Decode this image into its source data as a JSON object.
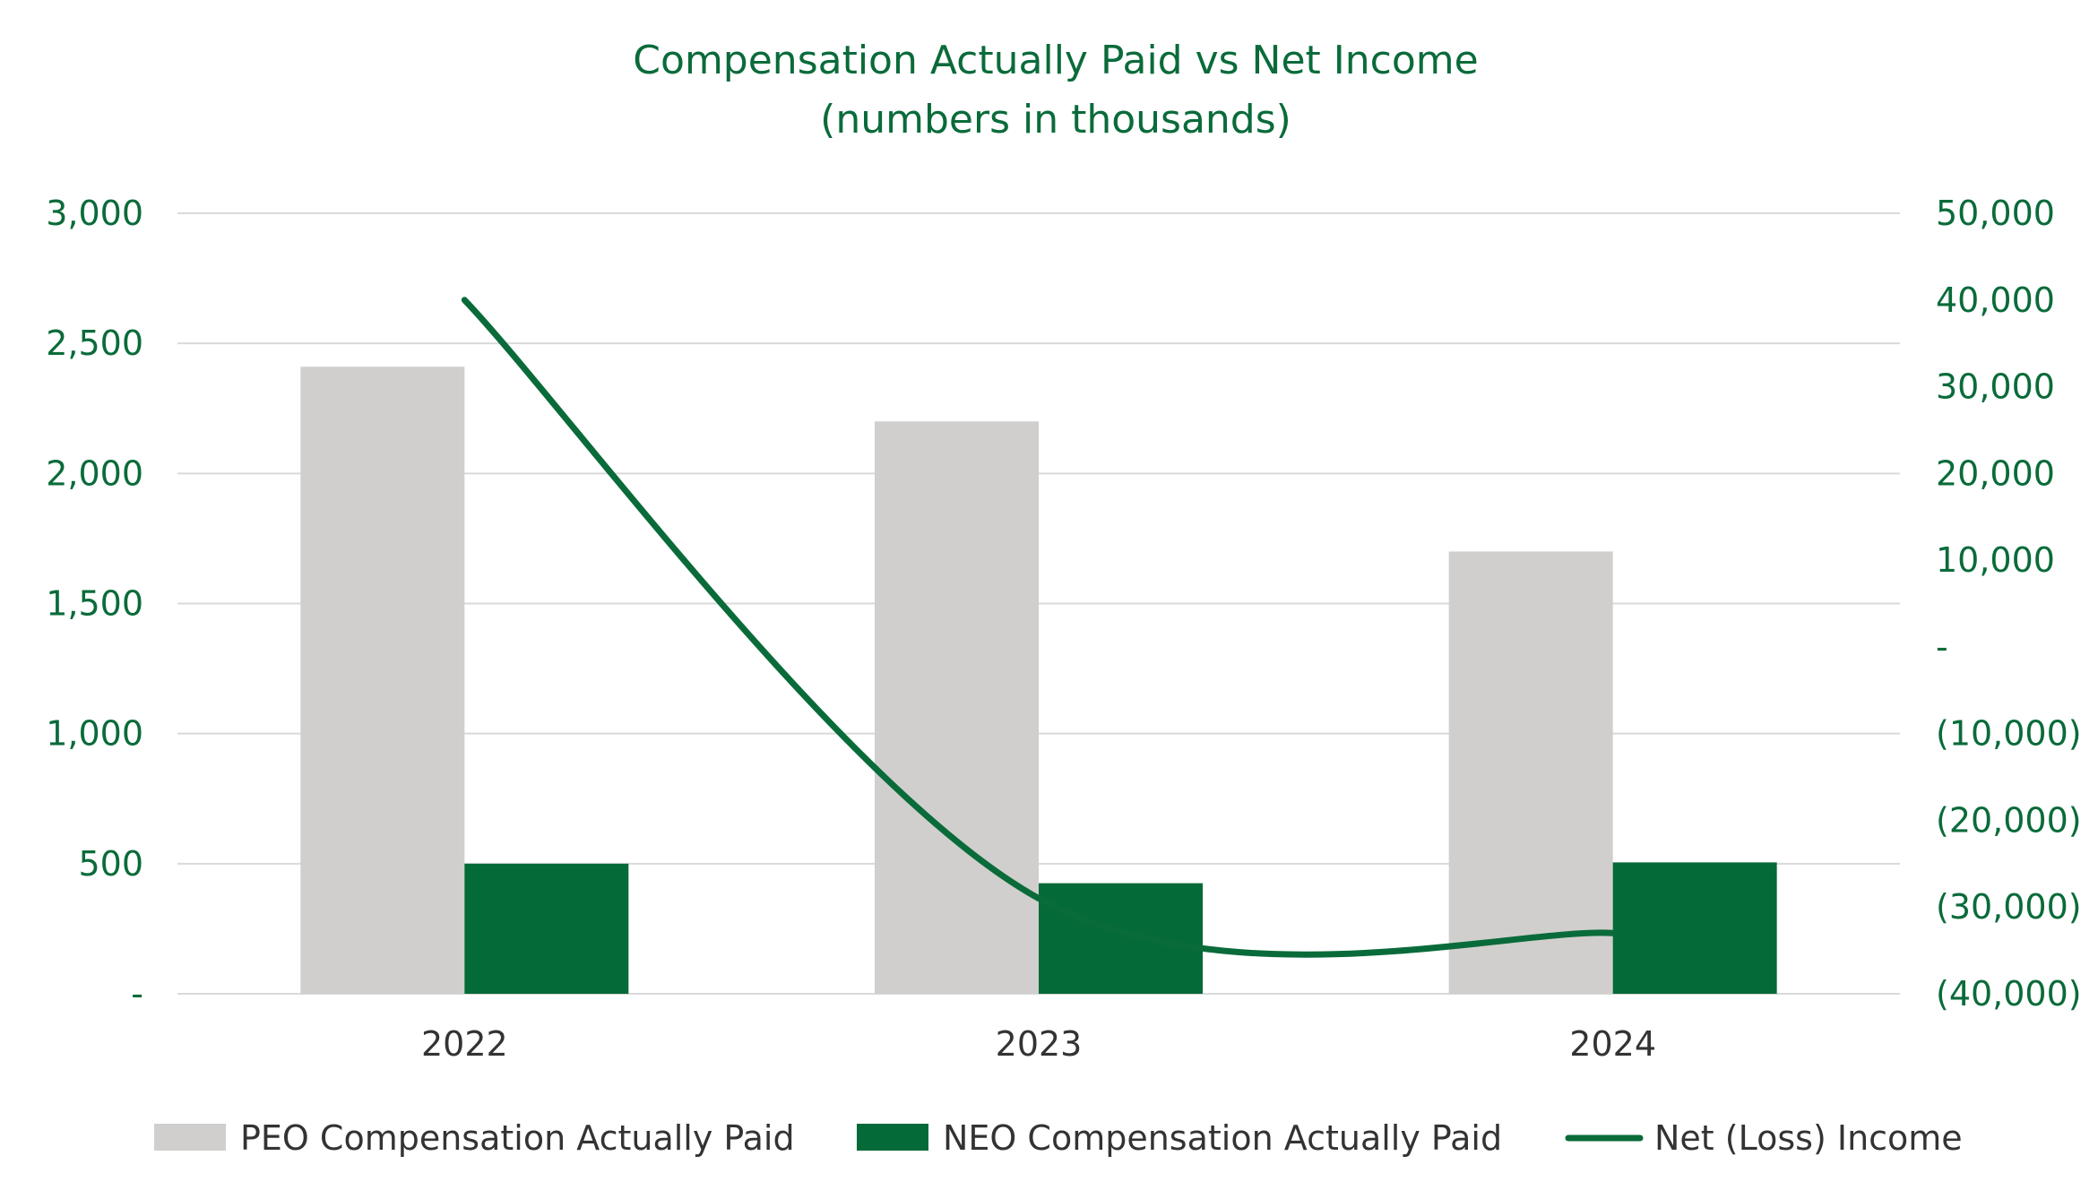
{
  "chart_data": {
    "type": "bar",
    "title": "Compensation Actually Paid vs Net Income",
    "subtitle": "(numbers in thousands)",
    "categories": [
      "2022",
      "2023",
      "2024"
    ],
    "series": [
      {
        "name": "PEO Compensation Actually Paid",
        "type": "bar",
        "axis": "left",
        "color": "#d0cfcd",
        "values": [
          2410,
          2200,
          1700
        ]
      },
      {
        "name": "NEO Compensation Actually Paid",
        "type": "bar",
        "axis": "left",
        "color": "#046a38",
        "values": [
          500,
          425,
          505
        ]
      },
      {
        "name": "Net (Loss) Income",
        "type": "line",
        "axis": "right",
        "color": "#0a6b3a",
        "values": [
          40000,
          -29000,
          -33000
        ]
      }
    ],
    "y_left": {
      "min": 0,
      "max": 3000,
      "ticks": [
        0,
        500,
        1000,
        1500,
        2000,
        2500,
        3000
      ],
      "tick_labels": [
        "-",
        "500",
        "1,000",
        "1,500",
        "2,000",
        "2,500",
        "3,000"
      ]
    },
    "y_right": {
      "min": -40000,
      "max": 50000,
      "ticks": [
        -40000,
        -30000,
        -20000,
        -10000,
        0,
        10000,
        20000,
        30000,
        40000,
        50000
      ],
      "tick_labels": [
        "(40,000)",
        "(30,000)",
        "(20,000)",
        "(10,000)",
        "-",
        "10,000",
        "20,000",
        "30,000",
        "40,000",
        "50,000"
      ]
    },
    "legend": {
      "position": "bottom",
      "entries": [
        "PEO Compensation Actually Paid",
        "NEO Compensation Actually Paid",
        "Net (Loss) Income"
      ]
    },
    "grid": true
  }
}
